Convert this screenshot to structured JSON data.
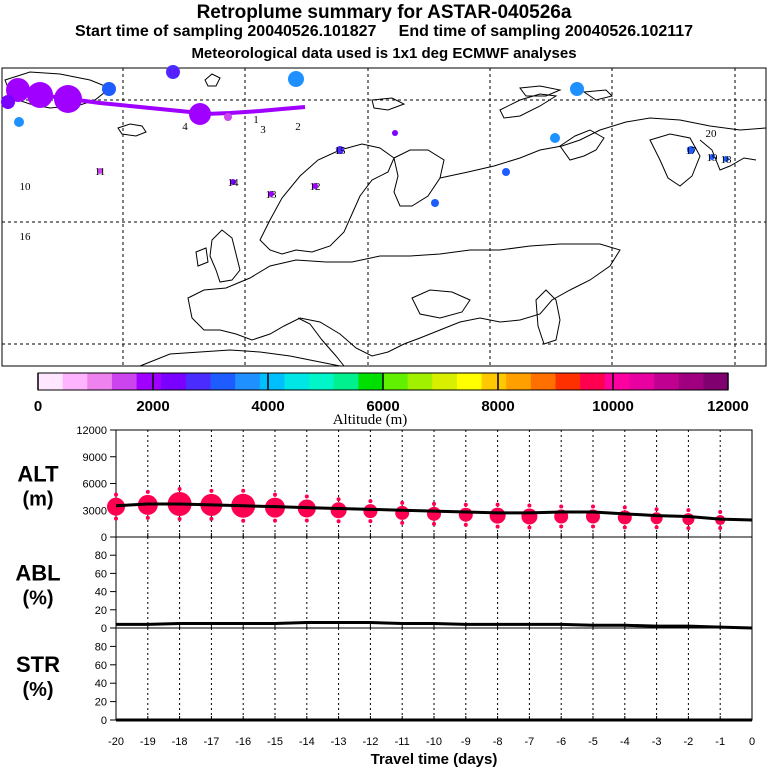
{
  "header": {
    "title": "Retroplume summary for ASTAR-040526a",
    "start_label": "Start time of sampling 20040526.101827",
    "end_label": "End time of sampling 20040526.102117",
    "met_label": "Meteorological data used is 1x1 deg ECMWF analyses"
  },
  "colorbar": {
    "label": "Altitude (m)",
    "tick_labels": [
      "0",
      "2000",
      "4000",
      "6000",
      "8000",
      "10000",
      "12000"
    ],
    "colors": [
      "#ffe8ff",
      "#ffb4ff",
      "#ee82ee",
      "#cc44ee",
      "#a000ff",
      "#7a00ff",
      "#4a2cff",
      "#1e5cff",
      "#1e90ff",
      "#00bfff",
      "#00e5e5",
      "#00f5c8",
      "#00f090",
      "#00e000",
      "#60f000",
      "#a0f000",
      "#d8f000",
      "#ffff00",
      "#ffc800",
      "#ffa000",
      "#ff7000",
      "#ff3000",
      "#ff0050",
      "#ff00a0",
      "#e800a0",
      "#c00090",
      "#a00080",
      "#800070"
    ]
  },
  "map": {
    "labels": [
      {
        "text": "10",
        "color": "#7a00ff"
      },
      {
        "text": "7",
        "color": "#1e90ff"
      },
      {
        "text": "8",
        "color": "#1e90ff"
      },
      {
        "text": "5",
        "color": "#1e90ff"
      },
      {
        "text": "9",
        "color": "#1e90ff"
      },
      {
        "text": "10",
        "color": "#000000"
      },
      {
        "text": "16",
        "color": "#000000"
      },
      {
        "text": "15",
        "color": "#000000"
      },
      {
        "text": "14",
        "color": "#000000"
      },
      {
        "text": "13",
        "color": "#000000"
      },
      {
        "text": "12",
        "color": "#000000"
      },
      {
        "text": "11",
        "color": "#000000"
      },
      {
        "text": "20",
        "color": "#000000"
      },
      {
        "text": "19",
        "color": "#000000"
      },
      {
        "text": "18",
        "color": "#000000"
      },
      {
        "text": "17",
        "color": "#000000"
      },
      {
        "text": "4",
        "color": "#000000"
      },
      {
        "text": "3",
        "color": "#000000"
      },
      {
        "text": "2",
        "color": "#000000"
      },
      {
        "text": "1",
        "color": "#000000"
      }
    ]
  },
  "chart_data": [
    {
      "type": "scatter",
      "name": "ALT",
      "ylabel": "ALT",
      "yunit": "(m)",
      "ylim": [
        0,
        12000
      ],
      "yticks": [
        0,
        3000,
        6000,
        9000,
        12000
      ],
      "line_x": [
        -20,
        -19,
        -18,
        -17,
        -16,
        -15,
        -14,
        -13,
        -12,
        -11,
        -10,
        -9,
        -8,
        -7,
        -6,
        -5,
        -4,
        -3,
        -2,
        -1,
        0
      ],
      "line_y": [
        3500,
        3700,
        3700,
        3600,
        3500,
        3400,
        3300,
        3200,
        3100,
        3000,
        2900,
        2800,
        2700,
        2700,
        2800,
        2800,
        2600,
        2400,
        2300,
        2000,
        1900
      ],
      "points_x": [
        -20,
        -19,
        -18,
        -17,
        -16,
        -15,
        -14,
        -13,
        -12,
        -11,
        -10,
        -9,
        -8,
        -7,
        -6,
        -5,
        -4,
        -3,
        -2,
        -1
      ],
      "points_y": [
        3400,
        3600,
        3700,
        3600,
        3500,
        3300,
        3200,
        3000,
        2900,
        2700,
        2600,
        2500,
        2400,
        2300,
        2300,
        2300,
        2200,
        2100,
        2000,
        1900
      ],
      "points_size": [
        9,
        10,
        12,
        11,
        12,
        10,
        9,
        8,
        7,
        7,
        7,
        7,
        8,
        8,
        7,
        7,
        7,
        6,
        6,
        5
      ],
      "point_color": "#ff0050"
    },
    {
      "type": "line",
      "name": "ABL",
      "ylabel": "ABL",
      "yunit": "(%)",
      "ylim": [
        0,
        100
      ],
      "yticks": [
        0,
        20,
        40,
        60,
        80
      ],
      "x": [
        -20,
        -19,
        -18,
        -17,
        -16,
        -15,
        -14,
        -13,
        -12,
        -11,
        -10,
        -9,
        -8,
        -7,
        -6,
        -5,
        -4,
        -3,
        -2,
        -1,
        0
      ],
      "y": [
        4,
        4,
        5,
        5,
        5,
        5,
        6,
        6,
        6,
        5,
        5,
        4,
        4,
        4,
        4,
        3,
        3,
        2,
        2,
        1,
        0
      ]
    },
    {
      "type": "line",
      "name": "STR",
      "ylabel": "STR",
      "yunit": "(%)",
      "xlabel": "Travel time (days)",
      "ylim": [
        0,
        100
      ],
      "yticks": [
        0,
        20,
        40,
        60,
        80
      ],
      "xticks": [
        "-20",
        "-19",
        "-18",
        "-17",
        "-16",
        "-15",
        "-14",
        "-13",
        "-12",
        "-11",
        "-10",
        "-9",
        "-8",
        "-7",
        "-6",
        "-5",
        "-4",
        "-3",
        "-2",
        "-1",
        "0"
      ],
      "x": [
        -20,
        -19,
        -18,
        -17,
        -16,
        -15,
        -14,
        -13,
        -12,
        -11,
        -10,
        -9,
        -8,
        -7,
        -6,
        -5,
        -4,
        -3,
        -2,
        -1,
        0
      ],
      "y": [
        0,
        0,
        0,
        0,
        0,
        0,
        0,
        0,
        0,
        0,
        0,
        0,
        0,
        0,
        0,
        0,
        0,
        0,
        0,
        0,
        0
      ]
    }
  ]
}
